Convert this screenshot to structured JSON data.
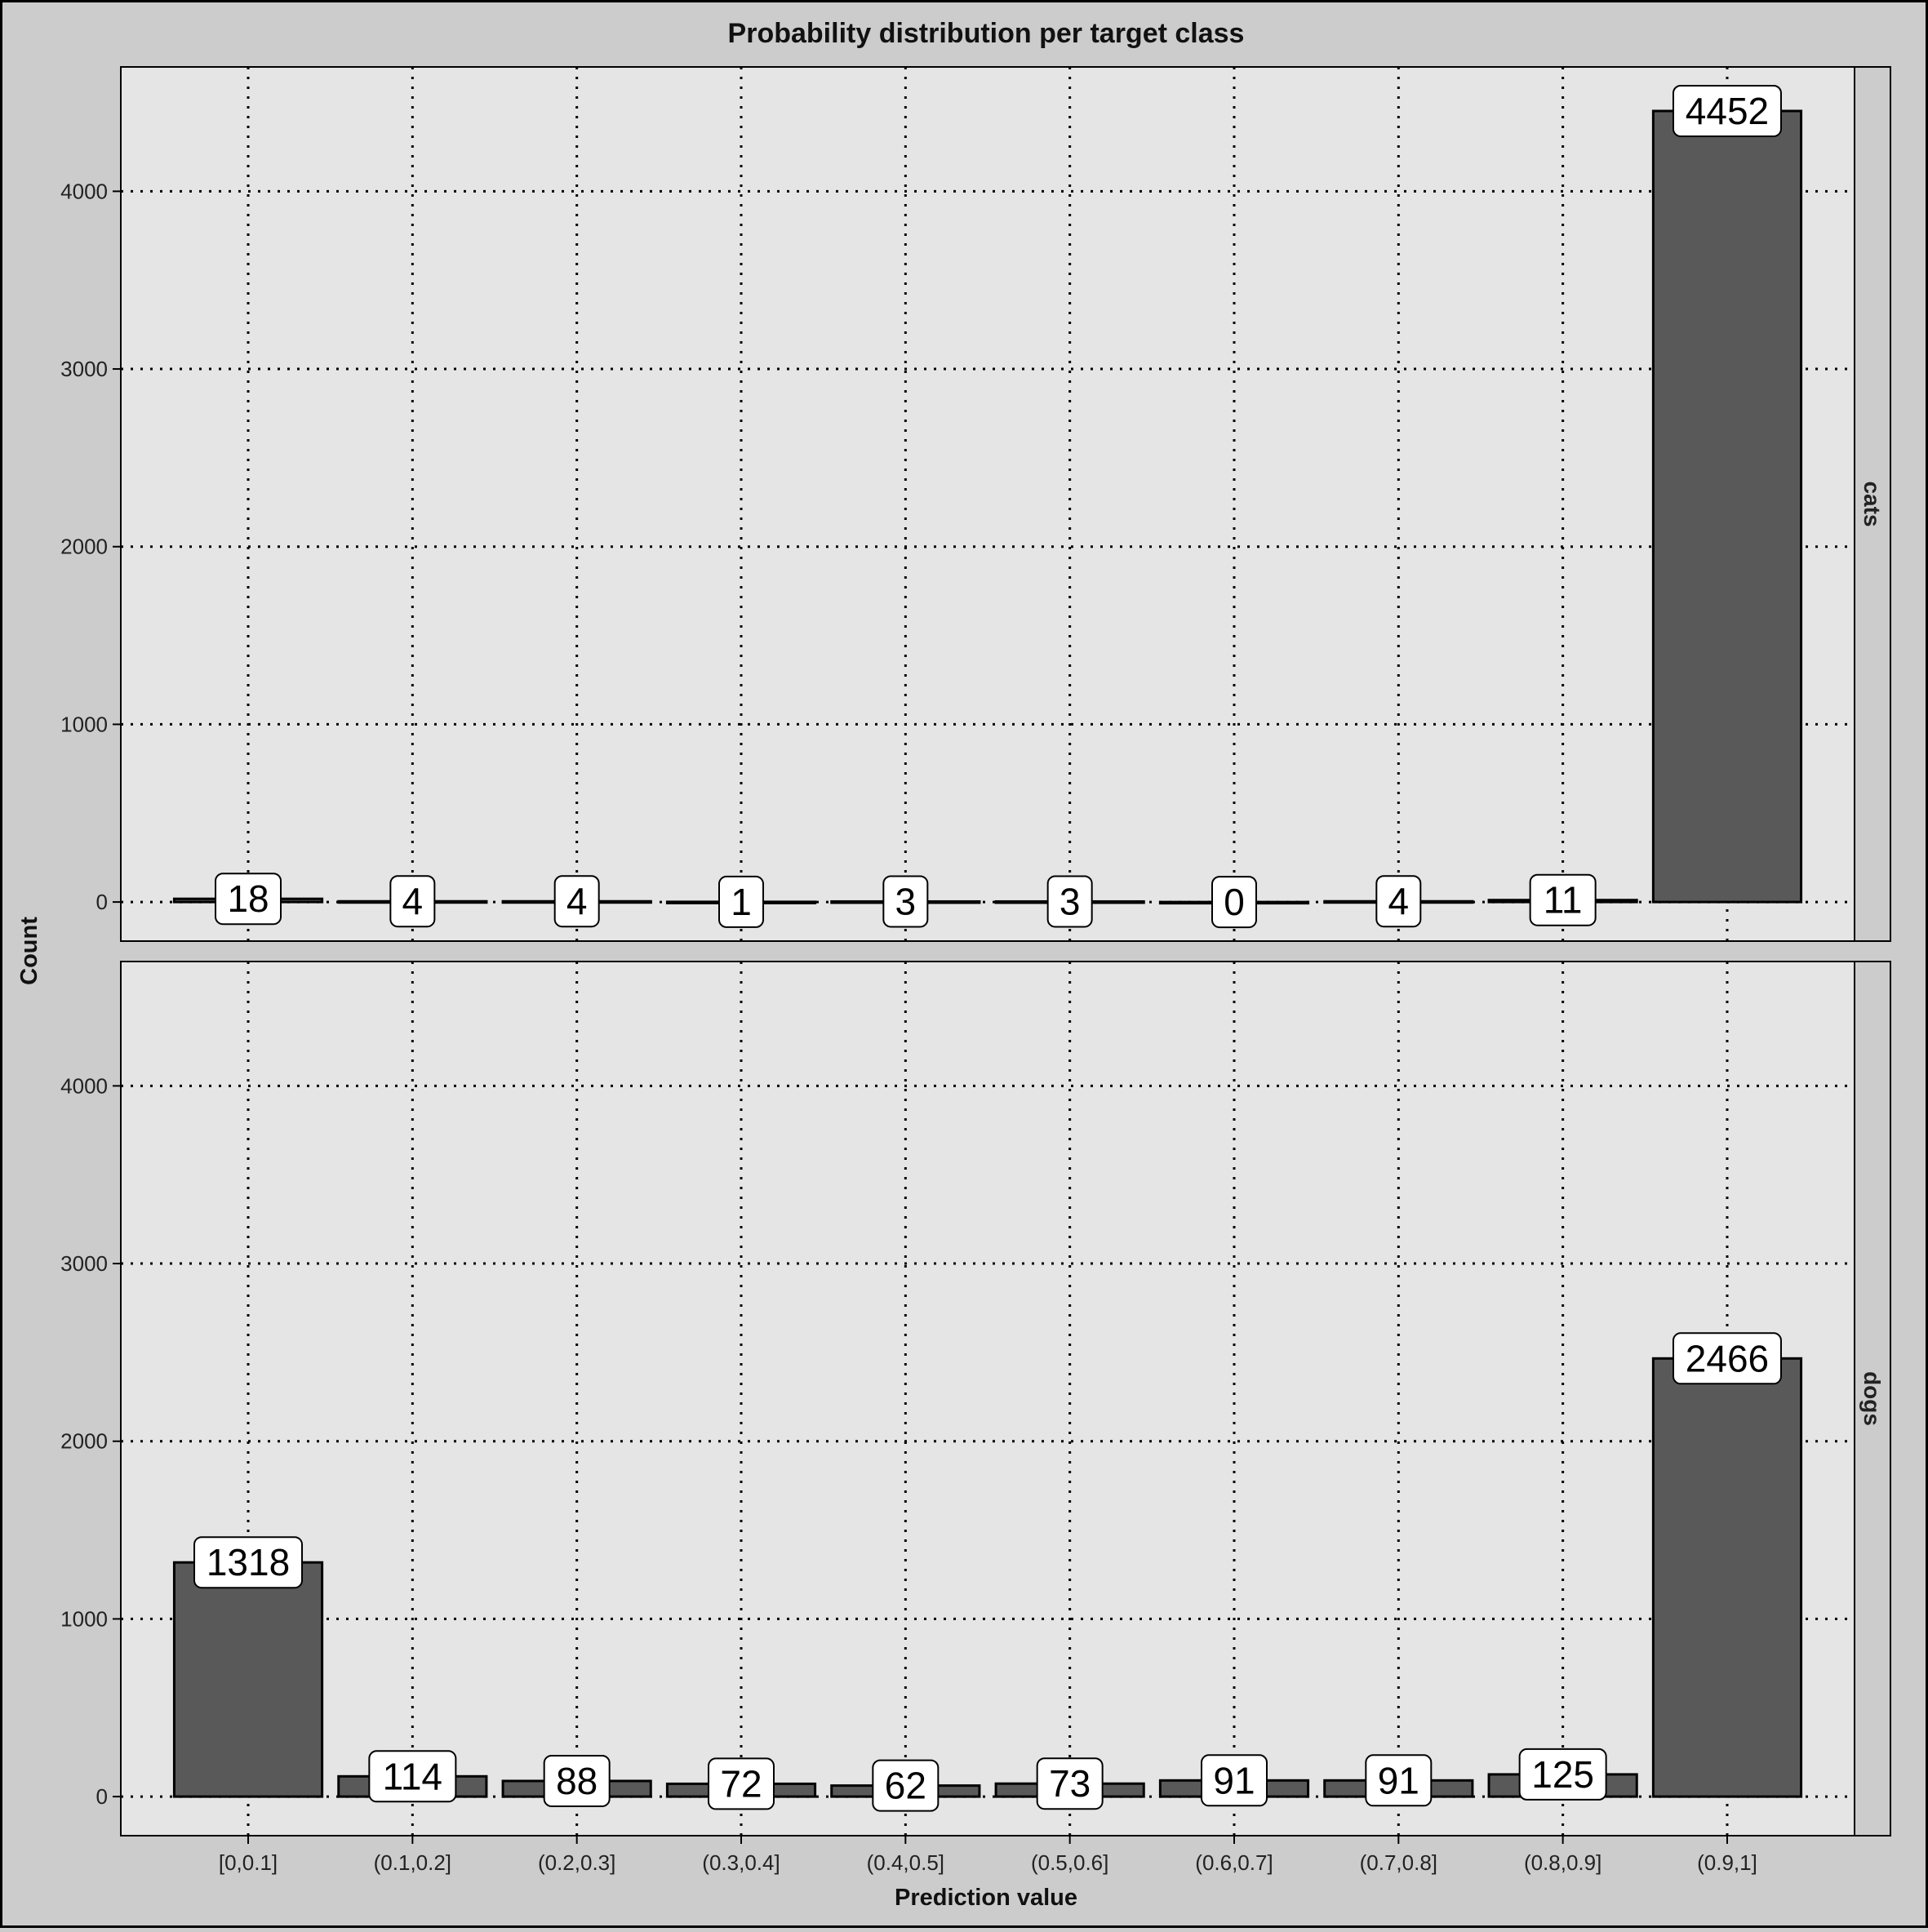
{
  "chart_data": {
    "type": "bar",
    "title": "Probability distribution per target class",
    "xlabel": "Prediction value",
    "ylabel": "Count",
    "ylim": [
      -220,
      4700
    ],
    "yticks": [
      0,
      1000,
      2000,
      3000,
      4000
    ],
    "grid": true,
    "categories": [
      "[0,0.1]",
      "(0.1,0.2]",
      "(0.2,0.3]",
      "(0.3,0.4]",
      "(0.4,0.5]",
      "(0.5,0.6]",
      "(0.6,0.7]",
      "(0.7,0.8]",
      "(0.8,0.9]",
      "(0.9,1]"
    ],
    "panels": [
      {
        "name": "cats",
        "values": [
          18,
          4,
          4,
          1,
          3,
          3,
          0,
          4,
          11,
          4452
        ]
      },
      {
        "name": "dogs",
        "values": [
          1318,
          114,
          88,
          72,
          62,
          73,
          91,
          91,
          125,
          2466
        ]
      }
    ],
    "colors": {
      "background": "#cccccc",
      "panel": "#e5e5e5",
      "bar": "#595959",
      "strip": "#cccccc",
      "label_box": "#ffffff"
    }
  }
}
